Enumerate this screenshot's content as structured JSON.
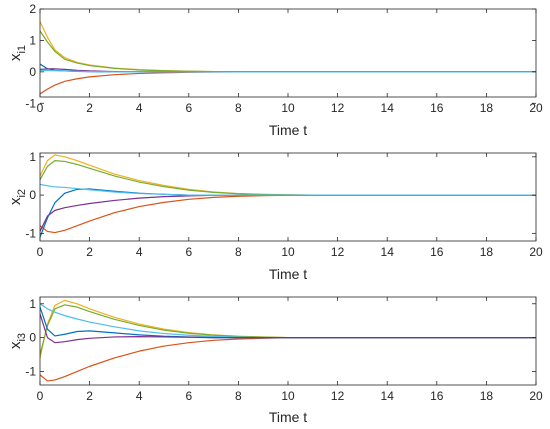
{
  "chart_data": [
    {
      "type": "line",
      "xlabel": "Time t",
      "ylabel": "x",
      "ylabel_sub": "i1",
      "xlim": [
        0,
        20
      ],
      "ylim": [
        -0.8,
        2
      ],
      "xticks": [
        "0",
        "2",
        "4",
        "6",
        "8",
        "10",
        "12",
        "14",
        "16",
        "18",
        "20"
      ],
      "yticks": [
        "-1",
        "0",
        "1",
        "2"
      ],
      "ytick_values": [
        -1,
        0,
        1,
        2
      ],
      "series": [
        {
          "color": "#EDB120",
          "points": [
            [
              0,
              1.6
            ],
            [
              0.3,
              1.1
            ],
            [
              0.6,
              0.7
            ],
            [
              1,
              0.45
            ],
            [
              1.5,
              0.3
            ],
            [
              2,
              0.22
            ],
            [
              3,
              0.12
            ],
            [
              4,
              0.07
            ],
            [
              5,
              0.04
            ],
            [
              6,
              0.02
            ],
            [
              7,
              0.01
            ],
            [
              8,
              0.0
            ],
            [
              20,
              0.0
            ]
          ]
        },
        {
          "color": "#77AC30",
          "points": [
            [
              0,
              1.3
            ],
            [
              0.3,
              0.95
            ],
            [
              0.6,
              0.65
            ],
            [
              1,
              0.4
            ],
            [
              1.5,
              0.28
            ],
            [
              2,
              0.2
            ],
            [
              3,
              0.11
            ],
            [
              4,
              0.06
            ],
            [
              5,
              0.035
            ],
            [
              6,
              0.02
            ],
            [
              7,
              0.01
            ],
            [
              8,
              0.0
            ],
            [
              20,
              0.0
            ]
          ]
        },
        {
          "color": "#D95319",
          "points": [
            [
              0,
              -0.7
            ],
            [
              0.3,
              -0.55
            ],
            [
              0.6,
              -0.42
            ],
            [
              1,
              -0.3
            ],
            [
              1.5,
              -0.22
            ],
            [
              2,
              -0.16
            ],
            [
              3,
              -0.09
            ],
            [
              4,
              -0.05
            ],
            [
              5,
              -0.03
            ],
            [
              6,
              -0.015
            ],
            [
              7,
              -0.005
            ],
            [
              8,
              0.0
            ],
            [
              20,
              0.0
            ]
          ]
        },
        {
          "color": "#0072BD",
          "points": [
            [
              0,
              0.25
            ],
            [
              0.3,
              0.1
            ],
            [
              0.6,
              0.05
            ],
            [
              1,
              0.03
            ],
            [
              1.5,
              0.015
            ],
            [
              2,
              0.005
            ],
            [
              3,
              0.0
            ],
            [
              20,
              0.0
            ]
          ]
        },
        {
          "color": "#7E2F8E",
          "points": [
            [
              0,
              0.08
            ],
            [
              0.5,
              0.1
            ],
            [
              1,
              0.08
            ],
            [
              1.5,
              0.05
            ],
            [
              2,
              0.03
            ],
            [
              3,
              0.01
            ],
            [
              4,
              0.0
            ],
            [
              20,
              0.0
            ]
          ]
        },
        {
          "color": "#4DBEEE",
          "points": [
            [
              0,
              0.05
            ],
            [
              0.5,
              0.04
            ],
            [
              1,
              0.03
            ],
            [
              2,
              0.01
            ],
            [
              3,
              0.0
            ],
            [
              20,
              0.0
            ]
          ]
        }
      ]
    },
    {
      "type": "line",
      "xlabel": "Time t",
      "ylabel": "x",
      "ylabel_sub": "i2",
      "xlim": [
        0,
        20
      ],
      "ylim": [
        -1.2,
        1.1
      ],
      "xticks": [
        "0",
        "2",
        "4",
        "6",
        "8",
        "10",
        "12",
        "14",
        "16",
        "18",
        "20"
      ],
      "yticks": [
        "-1",
        "0",
        "1"
      ],
      "ytick_values": [
        -1,
        0,
        1
      ],
      "series": [
        {
          "color": "#EDB120",
          "points": [
            [
              0,
              0.5
            ],
            [
              0.3,
              0.9
            ],
            [
              0.6,
              1.05
            ],
            [
              1,
              1.0
            ],
            [
              1.5,
              0.9
            ],
            [
              2,
              0.78
            ],
            [
              3,
              0.55
            ],
            [
              4,
              0.38
            ],
            [
              5,
              0.25
            ],
            [
              6,
              0.15
            ],
            [
              7,
              0.08
            ],
            [
              8,
              0.04
            ],
            [
              9,
              0.02
            ],
            [
              10,
              0.01
            ],
            [
              11,
              0.0
            ],
            [
              20,
              0.0
            ]
          ]
        },
        {
          "color": "#77AC30",
          "points": [
            [
              0,
              0.4
            ],
            [
              0.3,
              0.75
            ],
            [
              0.6,
              0.9
            ],
            [
              1,
              0.88
            ],
            [
              1.5,
              0.8
            ],
            [
              2,
              0.7
            ],
            [
              3,
              0.5
            ],
            [
              4,
              0.34
            ],
            [
              5,
              0.22
            ],
            [
              6,
              0.13
            ],
            [
              7,
              0.07
            ],
            [
              8,
              0.035
            ],
            [
              9,
              0.015
            ],
            [
              10,
              0.005
            ],
            [
              11,
              0.0
            ],
            [
              20,
              0.0
            ]
          ]
        },
        {
          "color": "#D95319",
          "points": [
            [
              0,
              -0.8
            ],
            [
              0.3,
              -0.95
            ],
            [
              0.6,
              -0.98
            ],
            [
              1,
              -0.92
            ],
            [
              1.5,
              -0.8
            ],
            [
              2,
              -0.68
            ],
            [
              3,
              -0.46
            ],
            [
              4,
              -0.3
            ],
            [
              5,
              -0.19
            ],
            [
              6,
              -0.11
            ],
            [
              7,
              -0.06
            ],
            [
              8,
              -0.03
            ],
            [
              9,
              -0.015
            ],
            [
              10,
              -0.005
            ],
            [
              11,
              0.0
            ],
            [
              20,
              0.0
            ]
          ]
        },
        {
          "color": "#0072BD",
          "points": [
            [
              0,
              -1.1
            ],
            [
              0.3,
              -0.6
            ],
            [
              0.6,
              -0.2
            ],
            [
              1,
              0.05
            ],
            [
              1.5,
              0.15
            ],
            [
              2,
              0.16
            ],
            [
              3,
              0.1
            ],
            [
              4,
              0.05
            ],
            [
              5,
              0.02
            ],
            [
              6,
              0.0
            ],
            [
              20,
              0.0
            ]
          ]
        },
        {
          "color": "#7E2F8E",
          "points": [
            [
              0,
              -0.95
            ],
            [
              0.3,
              -0.55
            ],
            [
              0.6,
              -0.4
            ],
            [
              1,
              -0.33
            ],
            [
              1.5,
              -0.27
            ],
            [
              2,
              -0.22
            ],
            [
              3,
              -0.14
            ],
            [
              4,
              -0.08
            ],
            [
              5,
              -0.04
            ],
            [
              6,
              -0.02
            ],
            [
              7,
              -0.005
            ],
            [
              8,
              0.0
            ],
            [
              20,
              0.0
            ]
          ]
        },
        {
          "color": "#4DBEEE",
          "points": [
            [
              0,
              0.28
            ],
            [
              0.5,
              0.22
            ],
            [
              1,
              0.2
            ],
            [
              1.5,
              0.17
            ],
            [
              2,
              0.14
            ],
            [
              3,
              0.08
            ],
            [
              4,
              0.04
            ],
            [
              5,
              0.02
            ],
            [
              6,
              0.0
            ],
            [
              20,
              0.0
            ]
          ]
        }
      ]
    },
    {
      "type": "line",
      "xlabel": "Time t",
      "ylabel": "x",
      "ylabel_sub": "i3",
      "xlim": [
        0,
        20
      ],
      "ylim": [
        -1.4,
        1.2
      ],
      "xticks": [
        "0",
        "2",
        "4",
        "6",
        "8",
        "10",
        "12",
        "14",
        "16",
        "18",
        "20"
      ],
      "yticks": [
        "-1",
        "0",
        "1"
      ],
      "ytick_values": [
        -1,
        0,
        1
      ],
      "series": [
        {
          "color": "#EDB120",
          "points": [
            [
              0,
              -0.6
            ],
            [
              0.3,
              0.4
            ],
            [
              0.6,
              0.95
            ],
            [
              1,
              1.1
            ],
            [
              1.5,
              1.0
            ],
            [
              2,
              0.85
            ],
            [
              3,
              0.6
            ],
            [
              4,
              0.4
            ],
            [
              5,
              0.25
            ],
            [
              6,
              0.15
            ],
            [
              7,
              0.08
            ],
            [
              8,
              0.04
            ],
            [
              9,
              0.02
            ],
            [
              10,
              0.0
            ],
            [
              20,
              0.0
            ]
          ]
        },
        {
          "color": "#77AC30",
          "points": [
            [
              0,
              -0.5
            ],
            [
              0.3,
              0.35
            ],
            [
              0.6,
              0.85
            ],
            [
              1,
              0.97
            ],
            [
              1.5,
              0.9
            ],
            [
              2,
              0.77
            ],
            [
              3,
              0.54
            ],
            [
              4,
              0.36
            ],
            [
              5,
              0.22
            ],
            [
              6,
              0.13
            ],
            [
              7,
              0.07
            ],
            [
              8,
              0.035
            ],
            [
              9,
              0.015
            ],
            [
              10,
              0.0
            ],
            [
              20,
              0.0
            ]
          ]
        },
        {
          "color": "#D95319",
          "points": [
            [
              0,
              -1.1
            ],
            [
              0.3,
              -1.28
            ],
            [
              0.6,
              -1.25
            ],
            [
              1,
              -1.15
            ],
            [
              1.5,
              -1.0
            ],
            [
              2,
              -0.85
            ],
            [
              3,
              -0.6
            ],
            [
              4,
              -0.4
            ],
            [
              5,
              -0.25
            ],
            [
              6,
              -0.15
            ],
            [
              7,
              -0.08
            ],
            [
              8,
              -0.04
            ],
            [
              9,
              -0.02
            ],
            [
              10,
              0.0
            ],
            [
              20,
              0.0
            ]
          ]
        },
        {
          "color": "#4DBEEE",
          "points": [
            [
              0,
              1.0
            ],
            [
              0.3,
              0.85
            ],
            [
              0.6,
              0.75
            ],
            [
              1,
              0.65
            ],
            [
              1.5,
              0.55
            ],
            [
              2,
              0.46
            ],
            [
              3,
              0.32
            ],
            [
              4,
              0.2
            ],
            [
              5,
              0.12
            ],
            [
              6,
              0.07
            ],
            [
              7,
              0.035
            ],
            [
              8,
              0.015
            ],
            [
              9,
              0.0
            ],
            [
              20,
              0.0
            ]
          ]
        },
        {
          "color": "#0072BD",
          "points": [
            [
              0,
              0.9
            ],
            [
              0.3,
              0.25
            ],
            [
              0.6,
              0.05
            ],
            [
              1,
              0.1
            ],
            [
              1.5,
              0.18
            ],
            [
              2,
              0.2
            ],
            [
              3,
              0.14
            ],
            [
              4,
              0.08
            ],
            [
              5,
              0.04
            ],
            [
              6,
              0.02
            ],
            [
              7,
              0.0
            ],
            [
              20,
              0.0
            ]
          ]
        },
        {
          "color": "#7E2F8E",
          "points": [
            [
              0,
              0.7
            ],
            [
              0.3,
              0.0
            ],
            [
              0.6,
              -0.15
            ],
            [
              1,
              -0.12
            ],
            [
              1.5,
              -0.06
            ],
            [
              2,
              -0.02
            ],
            [
              3,
              0.02
            ],
            [
              4,
              0.03
            ],
            [
              5,
              0.02
            ],
            [
              6,
              0.01
            ],
            [
              7,
              0.0
            ],
            [
              20,
              0.0
            ]
          ]
        }
      ]
    }
  ]
}
